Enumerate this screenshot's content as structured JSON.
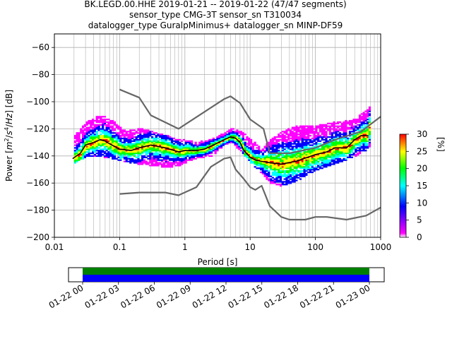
{
  "title_lines": [
    "BK.LEGD.00.HHE   2019-01-21 -- 2019-01-22  (47/47 segments)",
    "sensor_type CMG-3T sensor_sn T310034",
    "datalogger_type GuralpMinimus+ datalogger_sn MINP-DF59"
  ],
  "chart_data": [
    {
      "type": "heatmap",
      "title": "BK.LEGD.00.HHE   2019-01-21 -- 2019-01-22  (47/47 segments)",
      "xlabel": "Period [s]",
      "ylabel_parts": [
        "Power [",
        "m",
        "2",
        "/",
        "s",
        "4",
        "/",
        "Hz",
        "] [dB]"
      ],
      "ylabel": "Power [m2/s4/Hz] [dB]",
      "xscale": "log",
      "xlim": [
        0.01,
        1000
      ],
      "ylim": [
        -200,
        -50
      ],
      "x_ticks": [
        {
          "v": 0.01,
          "label": "0.01"
        },
        {
          "v": 0.1,
          "label": "0.1"
        },
        {
          "v": 1,
          "label": "1"
        },
        {
          "v": 10,
          "label": "10"
        },
        {
          "v": 100,
          "label": "100"
        },
        {
          "v": 1000,
          "label": "1000"
        }
      ],
      "y_ticks": [
        {
          "v": -60,
          "label": "−60"
        },
        {
          "v": -80,
          "label": "−80"
        },
        {
          "v": -100,
          "label": "−100"
        },
        {
          "v": -120,
          "label": "−120"
        },
        {
          "v": -140,
          "label": "−140"
        },
        {
          "v": -160,
          "label": "−160"
        },
        {
          "v": -180,
          "label": "−180"
        },
        {
          "v": -200,
          "label": "−200"
        }
      ],
      "grid": true,
      "colorbar": {
        "label": "[%]",
        "range": [
          0,
          30
        ],
        "ticks": [
          {
            "v": 0,
            "label": "0"
          },
          {
            "v": 5,
            "label": "5"
          },
          {
            "v": 10,
            "label": "10"
          },
          {
            "v": 15,
            "label": "15"
          },
          {
            "v": 20,
            "label": "20"
          },
          {
            "v": 25,
            "label": "25"
          },
          {
            "v": 30,
            "label": "30"
          }
        ],
        "colormap": [
          "#ffffff",
          "#ff00ff",
          "#0000ff",
          "#00ffff",
          "#00ff00",
          "#ffff00",
          "#ff0000"
        ]
      },
      "density_envelope": {
        "periods": [
          0.02,
          0.03,
          0.05,
          0.08,
          0.12,
          0.2,
          0.35,
          0.5,
          0.8,
          1.5,
          2.5,
          4,
          5,
          7,
          10,
          15,
          20,
          30,
          50,
          100,
          200,
          400,
          700
        ],
        "upper_db": [
          -125,
          -115,
          -110,
          -115,
          -122,
          -120,
          -123,
          -125,
          -128,
          -130,
          -128,
          -123,
          -120,
          -122,
          -128,
          -135,
          -128,
          -122,
          -118,
          -118,
          -115,
          -113,
          -103
        ],
        "lower_db": [
          -145,
          -140,
          -140,
          -142,
          -144,
          -146,
          -147,
          -148,
          -147,
          -141,
          -140,
          -131,
          -130,
          -136,
          -145,
          -153,
          -160,
          -162,
          -158,
          -150,
          -145,
          -140,
          -133
        ]
      },
      "series": [
        {
          "color": "#000000",
          "x": [
            0.019,
            0.025,
            0.03,
            0.04,
            0.05,
            0.06,
            0.07,
            0.1,
            0.15,
            0.2,
            0.3,
            0.5,
            0.8,
            1,
            1.5,
            2,
            3,
            4,
            5,
            6,
            7,
            8,
            10,
            12,
            15,
            20,
            30,
            50,
            100,
            150,
            200,
            300,
            400,
            500,
            650
          ],
          "y": [
            -142,
            -138,
            -132,
            -130,
            -128,
            -129,
            -131,
            -135,
            -136,
            -134,
            -132,
            -134,
            -137,
            -136,
            -136,
            -135,
            -131,
            -128,
            -126,
            -127,
            -130,
            -136,
            -141,
            -143,
            -144,
            -145,
            -146,
            -144,
            -139,
            -137,
            -134,
            -134,
            -128,
            -125,
            -125
          ]
        },
        {
          "color": "#666666",
          "x": [
            0.1,
            0.2,
            0.3,
            0.8,
            4,
            5,
            7,
            10,
            16,
            20,
            40,
            100,
            200,
            500,
            1000
          ],
          "y": [
            -91,
            -97,
            -110,
            -120,
            -98,
            -96,
            -101,
            -113,
            -120,
            -138,
            -138,
            -134,
            -128,
            -122,
            -111
          ]
        },
        {
          "color": "#666666",
          "x": [
            0.1,
            0.2,
            0.5,
            0.8,
            1.5,
            2.5,
            4,
            5,
            6,
            8,
            10,
            12,
            15,
            20,
            30,
            40,
            70,
            100,
            150,
            300,
            600,
            1000
          ],
          "y": [
            -168,
            -167,
            -167,
            -169,
            -163,
            -148,
            -142,
            -141,
            -150,
            -157,
            -163,
            -165,
            -162,
            -177,
            -185,
            -187,
            -187,
            -185,
            -185,
            -187,
            -184,
            -178
          ]
        }
      ]
    },
    {
      "type": "timeline",
      "x_ticks": [
        "01-22 00",
        "01-22 03",
        "01-22 06",
        "01-22 09",
        "01-22 12",
        "01-22 15",
        "01-22 18",
        "01-22 21",
        "01-23 00"
      ],
      "bands": [
        {
          "color": "#008000",
          "coverage": [
            0,
            1
          ]
        },
        {
          "color": "#0000ff",
          "coverage": [
            0,
            1
          ]
        }
      ]
    }
  ]
}
